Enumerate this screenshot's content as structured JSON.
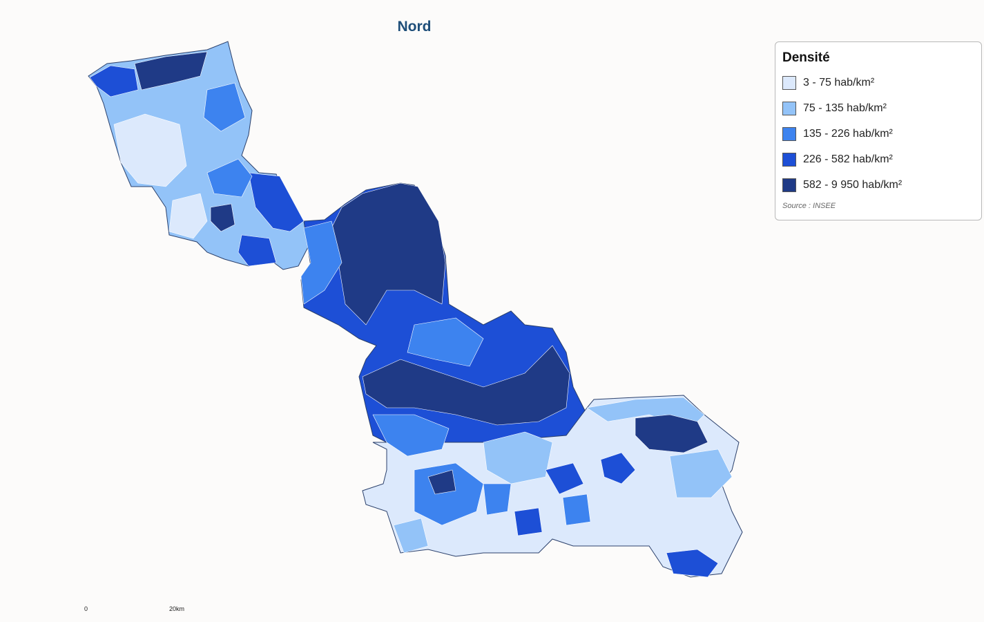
{
  "title": "Nord",
  "legend": {
    "title": "Densité",
    "items": [
      {
        "label": "3 - 75 hab/km²",
        "color": "#dce9fc"
      },
      {
        "label": "75 - 135 hab/km²",
        "color": "#93c3f8"
      },
      {
        "label": "135 - 226 hab/km²",
        "color": "#3d83ef"
      },
      {
        "label": "226 - 582 hab/km²",
        "color": "#1d4fd6"
      },
      {
        "label": "582 - 9 950 hab/km²",
        "color": "#1f3a86"
      }
    ],
    "source": "Source : INSEE"
  },
  "scale": {
    "start": "0",
    "end": "20km"
  }
}
